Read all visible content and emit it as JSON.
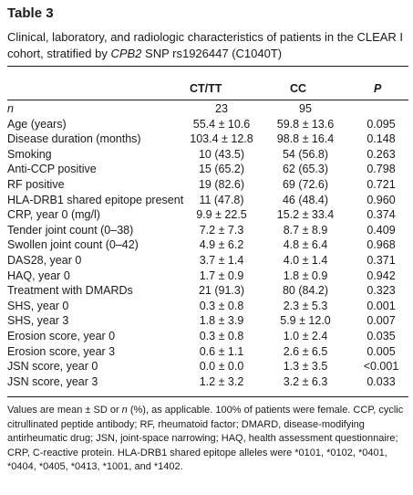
{
  "table_label": "Table 3",
  "caption_pre": "Clinical, laboratory, and radiologic characteristics of patients in the CLEAR I cohort, stratified by ",
  "caption_gene": "CPB2",
  "caption_post": " SNP rs1926447 (C1040T)",
  "headers": {
    "col1": "CT/TT",
    "col2": "CC",
    "col3": "P"
  },
  "rows": [
    {
      "label": "n",
      "v1": "23",
      "v2": "95",
      "p": ""
    },
    {
      "label": "Age (years)",
      "v1": "55.4 ± 10.6",
      "v2": "59.8 ± 13.6",
      "p": "0.095"
    },
    {
      "label": "Disease duration (months)",
      "v1": "103.4 ± 12.8",
      "v2": "98.8 ± 16.4",
      "p": "0.148"
    },
    {
      "label": "Smoking",
      "v1": "10 (43.5)",
      "v2": "54 (56.8)",
      "p": "0.263"
    },
    {
      "label": "Anti-CCP positive",
      "v1": "15 (65.2)",
      "v2": "62 (65.3)",
      "p": "0.798"
    },
    {
      "label": "RF positive",
      "v1": "19 (82.6)",
      "v2": "69 (72.6)",
      "p": "0.721"
    },
    {
      "label": "HLA-DRB1 shared epitope present",
      "v1": "11 (47.8)",
      "v2": "46 (48.4)",
      "p": "0.960"
    },
    {
      "label": "CRP, year 0 (mg/l)",
      "v1": "9.9 ± 22.5",
      "v2": "15.2 ± 33.4",
      "p": "0.374"
    },
    {
      "label": "Tender joint count (0–38)",
      "v1": "7.2 ± 7.3",
      "v2": "8.7 ± 8.9",
      "p": "0.409"
    },
    {
      "label": "Swollen joint count (0–42)",
      "v1": "4.9 ± 6.2",
      "v2": "4.8 ± 6.4",
      "p": "0.968"
    },
    {
      "label": "DAS28, year 0",
      "v1": "3.7 ± 1.4",
      "v2": "4.0 ± 1.4",
      "p": "0.371"
    },
    {
      "label": "HAQ, year 0",
      "v1": "1.7 ± 0.9",
      "v2": "1.8 ± 0.9",
      "p": "0.942"
    },
    {
      "label": "Treatment with DMARDs",
      "v1": "21 (91.3)",
      "v2": "80 (84.2)",
      "p": "0.323"
    },
    {
      "label": "SHS, year 0",
      "v1": "0.3 ± 0.8",
      "v2": "2.3 ± 5.3",
      "p": "0.001"
    },
    {
      "label": "SHS, year 3",
      "v1": "1.8 ± 3.9",
      "v2": "5.9 ± 12.0",
      "p": "0.007"
    },
    {
      "label": "Erosion score, year 0",
      "v1": "0.3 ± 0.8",
      "v2": "1.0 ± 2.4",
      "p": "0.035"
    },
    {
      "label": "Erosion score, year 3",
      "v1": "0.6 ± 1.1",
      "v2": "2.6 ± 6.5",
      "p": "0.005"
    },
    {
      "label": "JSN score, year 0",
      "v1": "0.0 ± 0.0",
      "v2": "1.3 ± 3.5",
      "p": "<0.001"
    },
    {
      "label": "JSN score, year 3",
      "v1": "1.2 ± 3.2",
      "v2": "3.2 ± 6.3",
      "p": "0.033"
    }
  ],
  "footnote_pre": "Values are mean ± SD or ",
  "footnote_n": "n",
  "footnote_post": " (%), as applicable. 100% of patients were female. CCP, cyclic citrullinated peptide antibody; RF, rheumatoid factor; DMARD, disease-modifying antirheumatic drug; JSN, joint-space narrowing; HAQ, health assessment questionnaire; CRP, C-reactive protein. HLA-DRB1 shared epitope alleles were *0101, *0102, *0401, *0404, *0405, *0413, *1001, and *1402."
}
